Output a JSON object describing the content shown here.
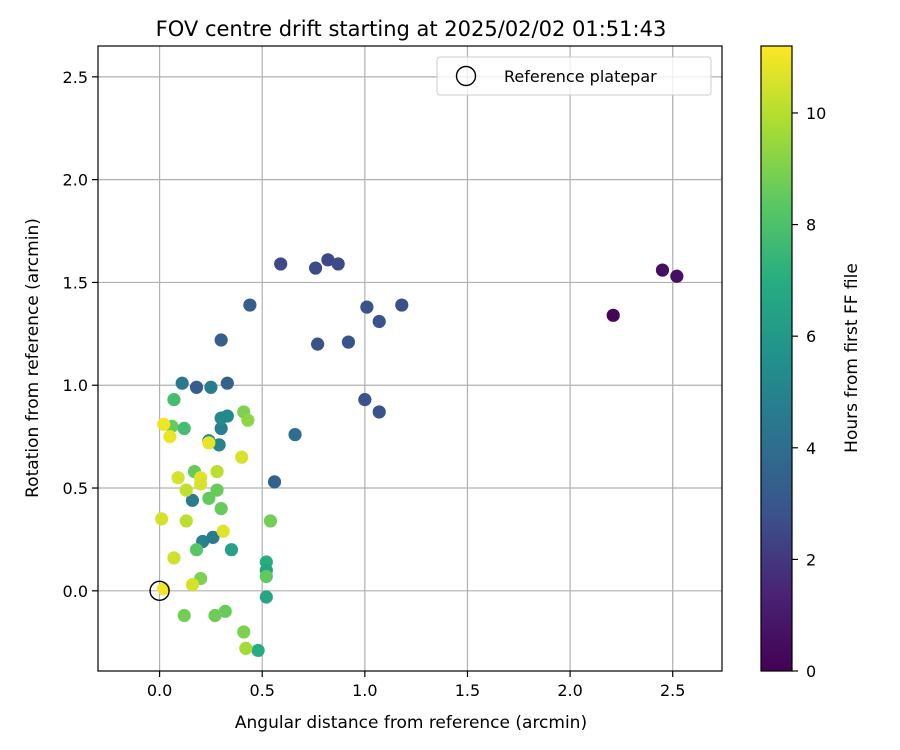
{
  "chart_data": {
    "type": "scatter",
    "title": "FOV centre drift starting at 2025/02/02 01:51:43",
    "xlabel": "Angular distance from reference (arcmin)",
    "ylabel": "Rotation from reference (arcmin)",
    "xlim": [
      -0.3,
      2.74
    ],
    "ylim": [
      -0.39,
      2.65
    ],
    "xticks": [
      0.0,
      0.5,
      1.0,
      1.5,
      2.0,
      2.5
    ],
    "xtick_labels": [
      "0.0",
      "0.5",
      "1.0",
      "1.5",
      "2.0",
      "2.5"
    ],
    "yticks": [
      0.0,
      0.5,
      1.0,
      1.5,
      2.0,
      2.5
    ],
    "ytick_labels": [
      "0.0",
      "0.5",
      "1.0",
      "1.5",
      "2.0",
      "2.5"
    ],
    "grid": true,
    "legend": {
      "placement": "top-right",
      "entries": [
        {
          "label": "Reference platepar",
          "marker": "open-circle"
        }
      ]
    },
    "reference_point": {
      "x": 0.0,
      "y": 0.0
    },
    "colorbar": {
      "label": "Hours from first FF file",
      "min": 0,
      "max": 11.2,
      "ticks": [
        0,
        2,
        4,
        6,
        8,
        10
      ],
      "tick_labels": [
        "0",
        "2",
        "4",
        "6",
        "8",
        "10"
      ],
      "colormap": "viridis"
    },
    "points": [
      {
        "x": 2.21,
        "y": 1.34,
        "h": 0.2
      },
      {
        "x": 2.45,
        "y": 1.56,
        "h": 0.5
      },
      {
        "x": 2.52,
        "y": 1.53,
        "h": 0.6
      },
      {
        "x": 0.59,
        "y": 1.59,
        "h": 2.6
      },
      {
        "x": 0.76,
        "y": 1.57,
        "h": 2.6
      },
      {
        "x": 0.82,
        "y": 1.61,
        "h": 2.5
      },
      {
        "x": 0.87,
        "y": 1.59,
        "h": 2.6
      },
      {
        "x": 1.01,
        "y": 1.38,
        "h": 2.8
      },
      {
        "x": 1.18,
        "y": 1.39,
        "h": 2.7
      },
      {
        "x": 1.07,
        "y": 1.31,
        "h": 2.8
      },
      {
        "x": 0.77,
        "y": 1.2,
        "h": 2.9
      },
      {
        "x": 0.92,
        "y": 1.21,
        "h": 2.9
      },
      {
        "x": 1.0,
        "y": 0.93,
        "h": 2.8
      },
      {
        "x": 1.07,
        "y": 0.87,
        "h": 2.8
      },
      {
        "x": 0.44,
        "y": 1.39,
        "h": 3.4
      },
      {
        "x": 0.3,
        "y": 1.22,
        "h": 3.4
      },
      {
        "x": 0.18,
        "y": 0.99,
        "h": 3.3
      },
      {
        "x": 0.33,
        "y": 1.01,
        "h": 3.5
      },
      {
        "x": 0.11,
        "y": 1.01,
        "h": 4.5
      },
      {
        "x": 0.25,
        "y": 0.99,
        "h": 4.7
      },
      {
        "x": 0.66,
        "y": 0.76,
        "h": 4.0
      },
      {
        "x": 0.56,
        "y": 0.53,
        "h": 3.5
      },
      {
        "x": 0.3,
        "y": 0.79,
        "h": 4.8
      },
      {
        "x": 0.3,
        "y": 0.84,
        "h": 5.2
      },
      {
        "x": 0.33,
        "y": 0.85,
        "h": 5.3
      },
      {
        "x": 0.24,
        "y": 0.73,
        "h": 5.0
      },
      {
        "x": 0.29,
        "y": 0.71,
        "h": 5.0
      },
      {
        "x": 0.16,
        "y": 0.44,
        "h": 4.6
      },
      {
        "x": 0.21,
        "y": 0.24,
        "h": 4.9
      },
      {
        "x": 0.26,
        "y": 0.26,
        "h": 4.6
      },
      {
        "x": 0.35,
        "y": 0.2,
        "h": 6.4
      },
      {
        "x": 0.52,
        "y": 0.14,
        "h": 7.0
      },
      {
        "x": 0.52,
        "y": 0.1,
        "h": 6.6
      },
      {
        "x": 0.52,
        "y": -0.03,
        "h": 6.6
      },
      {
        "x": 0.48,
        "y": -0.29,
        "h": 6.9
      },
      {
        "x": 0.07,
        "y": 0.93,
        "h": 7.8
      },
      {
        "x": 0.06,
        "y": 0.8,
        "h": 8.6
      },
      {
        "x": 0.12,
        "y": 0.79,
        "h": 7.8
      },
      {
        "x": 0.41,
        "y": 0.87,
        "h": 9.0
      },
      {
        "x": 0.43,
        "y": 0.83,
        "h": 9.3
      },
      {
        "x": 0.17,
        "y": 0.58,
        "h": 8.6
      },
      {
        "x": 0.24,
        "y": 0.45,
        "h": 8.5
      },
      {
        "x": 0.28,
        "y": 0.49,
        "h": 8.6
      },
      {
        "x": 0.3,
        "y": 0.4,
        "h": 8.6
      },
      {
        "x": 0.18,
        "y": 0.2,
        "h": 8.3
      },
      {
        "x": 0.2,
        "y": 0.06,
        "h": 9.0
      },
      {
        "x": 0.54,
        "y": 0.34,
        "h": 8.8
      },
      {
        "x": 0.52,
        "y": 0.07,
        "h": 8.5
      },
      {
        "x": 0.32,
        "y": -0.1,
        "h": 8.6
      },
      {
        "x": 0.27,
        "y": -0.12,
        "h": 8.7
      },
      {
        "x": 0.12,
        "y": -0.12,
        "h": 8.8
      },
      {
        "x": 0.41,
        "y": -0.2,
        "h": 9.0
      },
      {
        "x": 0.42,
        "y": -0.28,
        "h": 9.7
      },
      {
        "x": 0.02,
        "y": 0.81,
        "h": 11.0
      },
      {
        "x": 0.05,
        "y": 0.75,
        "h": 10.9
      },
      {
        "x": 0.24,
        "y": 0.72,
        "h": 10.8
      },
      {
        "x": 0.4,
        "y": 0.65,
        "h": 10.6
      },
      {
        "x": 0.09,
        "y": 0.55,
        "h": 10.5
      },
      {
        "x": 0.2,
        "y": 0.55,
        "h": 10.7
      },
      {
        "x": 0.28,
        "y": 0.58,
        "h": 10.1
      },
      {
        "x": 0.13,
        "y": 0.49,
        "h": 10.2
      },
      {
        "x": 0.2,
        "y": 0.52,
        "h": 10.6
      },
      {
        "x": 0.01,
        "y": 0.35,
        "h": 10.5
      },
      {
        "x": 0.13,
        "y": 0.34,
        "h": 10.1
      },
      {
        "x": 0.31,
        "y": 0.29,
        "h": 10.7
      },
      {
        "x": 0.07,
        "y": 0.16,
        "h": 10.4
      },
      {
        "x": 0.16,
        "y": 0.03,
        "h": 10.5
      },
      {
        "x": 0.02,
        "y": 0.01,
        "h": 11.0
      }
    ]
  }
}
